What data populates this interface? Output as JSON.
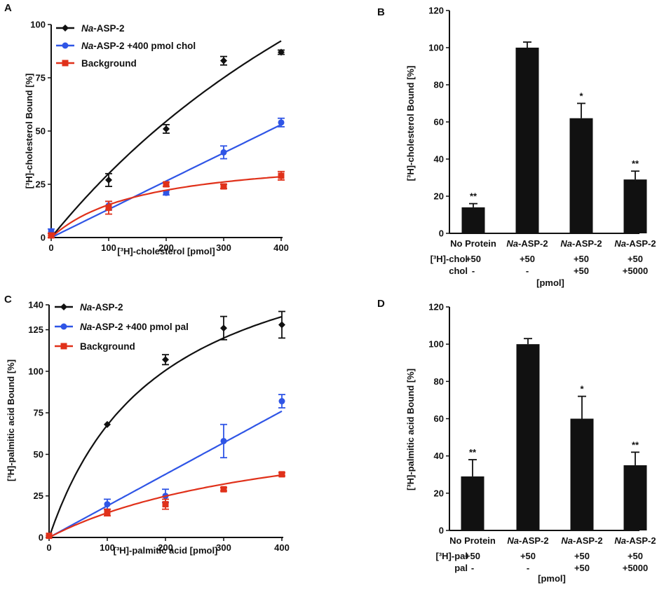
{
  "colors": {
    "axis": "#111111",
    "bar": "#111111"
  },
  "chart_data": [
    {
      "panel": "A",
      "type": "scatter",
      "xlabel": "[³H]-cholesterol [pmol]",
      "ylabel": "[³H]-cholesterol Bound [%]",
      "xlim": [
        0,
        400
      ],
      "ylim": [
        0,
        100
      ],
      "xticks": [
        "0",
        "100",
        "200",
        "300",
        "400"
      ],
      "yticks": [
        "0",
        "25",
        "50",
        "75",
        "100"
      ],
      "legend_position": "top-left",
      "series": [
        {
          "key": "aspA",
          "legend_italic": "Na",
          "legend_rest": "-ASP-2",
          "color": "#111111",
          "marker": "diamond",
          "x": [
            0,
            100,
            200,
            300,
            400
          ],
          "y": [
            1,
            27,
            51,
            83,
            87
          ],
          "err": [
            1,
            3,
            2,
            2,
            1
          ],
          "fit": {
            "model": "hyperbolic",
            "bmax": 300,
            "kd": 900
          }
        },
        {
          "key": "cholA",
          "legend_italic": "Na",
          "legend_rest": "-ASP-2 +400 pmol chol",
          "color": "#2f55e6",
          "marker": "circle",
          "x": [
            0,
            100,
            200,
            300,
            400
          ],
          "y": [
            3,
            15,
            21,
            40,
            54
          ],
          "err": [
            1,
            2,
            1,
            3,
            2
          ],
          "fit": {
            "model": "linear",
            "slope": 0.1325,
            "intercept": 0
          }
        },
        {
          "key": "bgA",
          "legend_italic": "",
          "legend_rest": "Background",
          "color": "#e0311a",
          "marker": "square",
          "x": [
            0,
            100,
            200,
            300,
            400
          ],
          "y": [
            1,
            14,
            25,
            24,
            29
          ],
          "err": [
            1,
            3,
            1,
            1,
            2
          ],
          "fit": {
            "model": "hyperbolic",
            "bmax": 40,
            "kd": 160
          }
        }
      ]
    },
    {
      "panel": "B",
      "type": "bar",
      "ylabel": "[³H]-cholesterol Bound [%]",
      "ylim": [
        0,
        120
      ],
      "yticks": [
        "0",
        "20",
        "40",
        "60",
        "80",
        "100",
        "120"
      ],
      "categories": [
        {
          "italic": "",
          "rest": "No Protein"
        },
        {
          "italic": "Na",
          "rest": "-ASP-2"
        },
        {
          "italic": "Na",
          "rest": "-ASP-2"
        },
        {
          "italic": "Na",
          "rest": "-ASP-2"
        }
      ],
      "values": [
        14,
        100,
        62,
        29
      ],
      "errors": [
        2,
        3,
        8,
        4.5
      ],
      "significance": [
        "**",
        "",
        "*",
        "**"
      ],
      "row_labels": [
        "[³H]-chol",
        "chol"
      ],
      "row1": [
        "+50",
        "+50",
        "+50",
        "+50"
      ],
      "row2": [
        "-",
        "-",
        "+50",
        "+5000"
      ],
      "unit": "[pmol]"
    },
    {
      "panel": "C",
      "type": "scatter",
      "xlabel": "[³H]-palmitic acid [pmol]",
      "ylabel": "[³H]-palmitic acid Bound [%]",
      "xlim": [
        0,
        400
      ],
      "ylim": [
        0,
        140
      ],
      "xticks": [
        "0",
        "100",
        "200",
        "300",
        "400"
      ],
      "yticks": [
        "0",
        "25",
        "50",
        "75",
        "100",
        "125",
        "140"
      ],
      "ytick_values": [
        0,
        25,
        50,
        75,
        100,
        125,
        140
      ],
      "legend_position": "top-left",
      "series": [
        {
          "key": "aspC",
          "legend_italic": "Na",
          "legend_rest": "-ASP-2",
          "color": "#111111",
          "marker": "diamond",
          "x": [
            0,
            100,
            200,
            300,
            400
          ],
          "y": [
            1,
            68,
            107,
            126,
            128
          ],
          "err": [
            0,
            0,
            3,
            7,
            8
          ],
          "fit": {
            "model": "hyperbolic",
            "bmax": 196,
            "kd": 190
          }
        },
        {
          "key": "palC",
          "legend_italic": "Na",
          "legend_rest": "-ASP-2 +400 pmol pal",
          "color": "#2f55e6",
          "marker": "circle",
          "x": [
            0,
            100,
            200,
            300,
            400
          ],
          "y": [
            1,
            20,
            25,
            58,
            82
          ],
          "err": [
            0,
            3,
            4,
            10,
            4
          ],
          "fit": {
            "model": "linear",
            "slope": 0.19,
            "intercept": 0
          }
        },
        {
          "key": "bgC",
          "legend_italic": "",
          "legend_rest": "Background",
          "color": "#e0311a",
          "marker": "square",
          "x": [
            0,
            100,
            200,
            300,
            400
          ],
          "y": [
            1,
            15,
            20,
            29,
            38
          ],
          "err": [
            0,
            2,
            3,
            1,
            1
          ],
          "fit": {
            "model": "hyperbolic",
            "bmax": 77,
            "kd": 420
          }
        }
      ]
    },
    {
      "panel": "D",
      "type": "bar",
      "ylabel": "[³H]-palmitic acid Bound [%]",
      "ylim": [
        0,
        120
      ],
      "yticks": [
        "0",
        "20",
        "40",
        "60",
        "80",
        "100",
        "120"
      ],
      "categories": [
        {
          "italic": "",
          "rest": "No Protein"
        },
        {
          "italic": "Na",
          "rest": "-ASP-2"
        },
        {
          "italic": "Na",
          "rest": "-ASP-2"
        },
        {
          "italic": "Na",
          "rest": "-ASP-2"
        }
      ],
      "values": [
        29,
        100,
        60,
        35
      ],
      "errors": [
        9,
        3,
        12,
        7
      ],
      "significance": [
        "**",
        "",
        "*",
        "**"
      ],
      "row_labels": [
        "[³H]-pal",
        "pal"
      ],
      "row1": [
        "+50",
        "+50",
        "+50",
        "+50"
      ],
      "row2": [
        "-",
        "-",
        "+50",
        "+5000"
      ],
      "unit": "[pmol]"
    }
  ]
}
